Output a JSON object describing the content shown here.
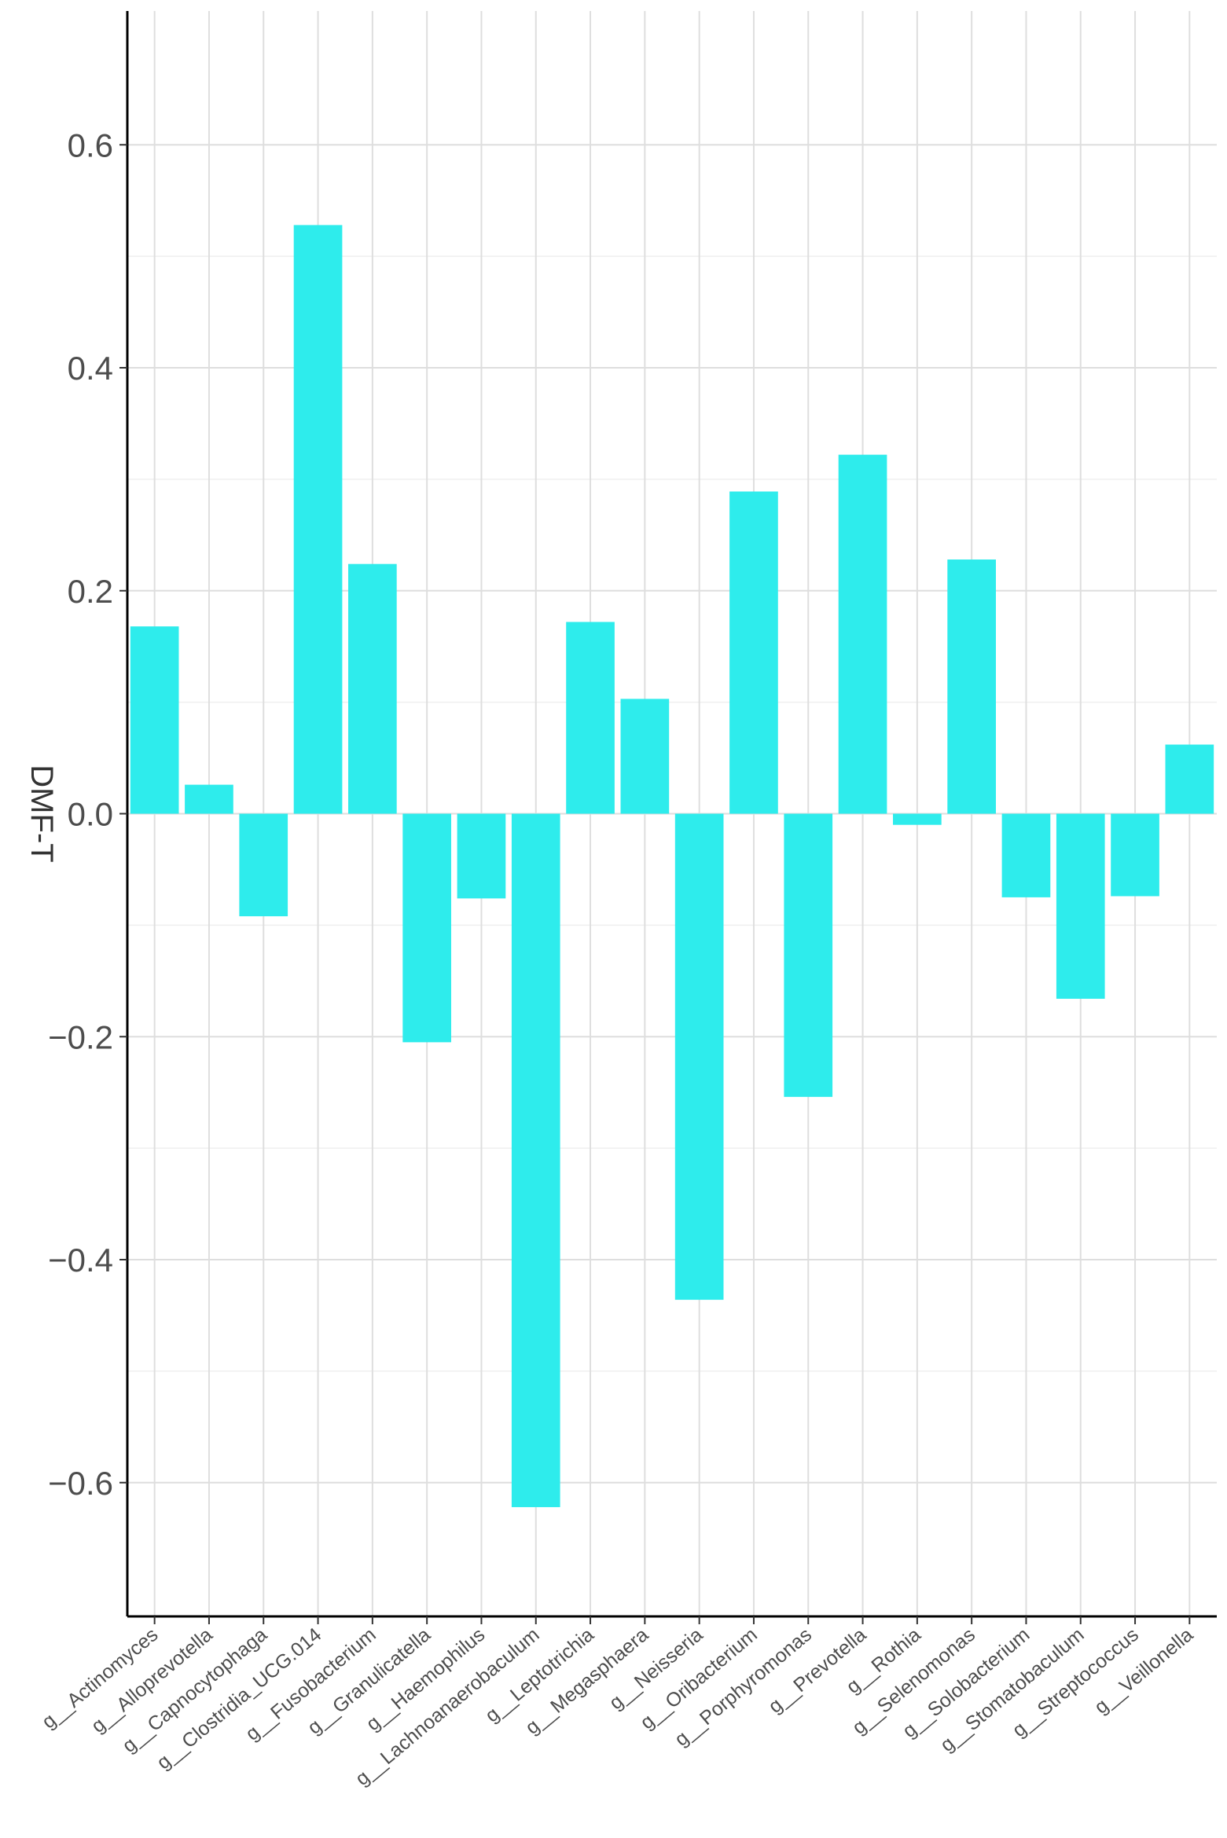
{
  "chart_data": {
    "type": "bar",
    "title": "",
    "xlabel": "",
    "ylabel": "DMF-T",
    "ylim": [
      -0.72,
      0.72
    ],
    "yticks": [
      0.6,
      0.4,
      0.2,
      0.0,
      -0.2,
      -0.4,
      -0.6
    ],
    "ytick_labels": [
      "0.6",
      "0.4",
      "0.2",
      "0.0",
      "−0.2",
      "−0.4",
      "−0.6"
    ],
    "grid": true,
    "legend": "none",
    "bar_color": "#2EECEC",
    "categories": [
      "g__Actinomyces",
      "g__Alloprevotella",
      "g__Capnocytophaga",
      "g__Clostridia_UCG.014",
      "g__Fusobacterium",
      "g__Granulicatella",
      "g__Haemophilus",
      "g__Lachnoanaerobaculum",
      "g__Leptotrichia",
      "g__Megasphaera",
      "g__Neisseria",
      "g__Oribacterium",
      "g__Porphyromonas",
      "g__Prevotella",
      "g__Rothia",
      "g__Selenomonas",
      "g__Solobacterium",
      "g__Stomatobaculum",
      "g__Streptococcus",
      "g__Veillonella"
    ],
    "values": [
      0.168,
      0.026,
      -0.092,
      0.528,
      0.224,
      -0.205,
      -0.076,
      -0.622,
      0.172,
      0.103,
      -0.436,
      0.289,
      -0.254,
      0.322,
      -0.01,
      0.228,
      -0.075,
      -0.166,
      -0.074,
      0.062
    ]
  }
}
